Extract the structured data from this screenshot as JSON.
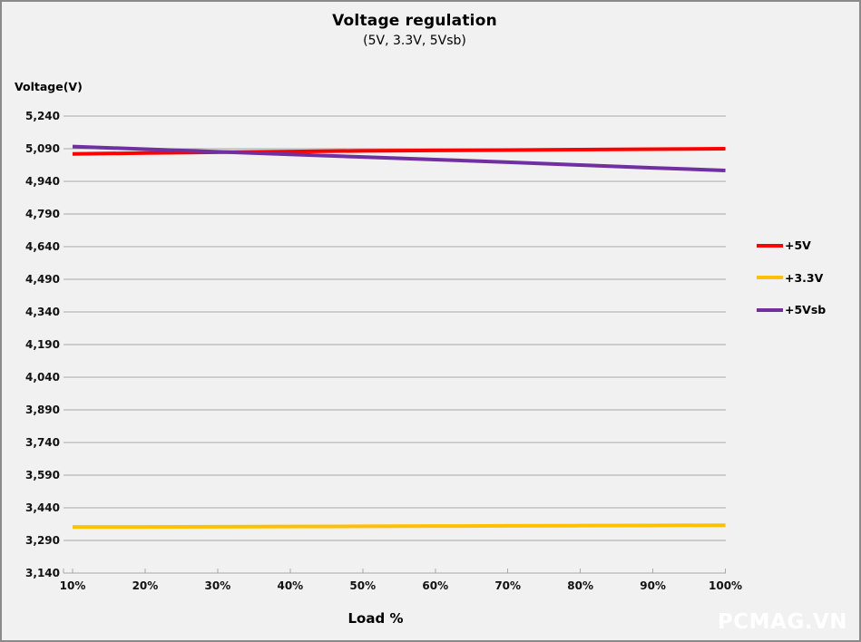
{
  "watermark": "PCMAG.VN",
  "chart_data": {
    "type": "line",
    "title": "Voltage regulation",
    "subtitle": "(5V, 3.3V, 5Vsb)",
    "xlabel": "Load %",
    "ylabel": "Voltage(V)",
    "categories": [
      "10%",
      "20%",
      "30%",
      "40%",
      "50%",
      "60%",
      "70%",
      "80%",
      "90%",
      "100%"
    ],
    "y_tick_labels": [
      "5,240",
      "5,090",
      "4,940",
      "4,790",
      "4,640",
      "4,490",
      "4,340",
      "4,190",
      "4,040",
      "3,890",
      "3,740",
      "3,590",
      "3,440",
      "3,290",
      "3,140"
    ],
    "ylim": [
      3140,
      5240
    ],
    "grid": true,
    "grid_color": "#A8A8A8",
    "axis_color": "#A8A8A8",
    "legend_position": "right",
    "series": [
      {
        "name": "+5V",
        "color": "#FF0000",
        "values": [
          5066,
          5070,
          5074,
          5077,
          5080,
          5082,
          5084,
          5086,
          5088,
          5090
        ]
      },
      {
        "name": "+3.3V",
        "color": "#FFC000",
        "values": [
          3352,
          3352,
          3353,
          3354,
          3355,
          3356,
          3357,
          3358,
          3359,
          3360
        ]
      },
      {
        "name": "+5Vsb",
        "color": "#7030A0",
        "values": [
          5100,
          5088,
          5076,
          5064,
          5052,
          5040,
          5028,
          5015,
          5002,
          4990
        ]
      }
    ]
  }
}
